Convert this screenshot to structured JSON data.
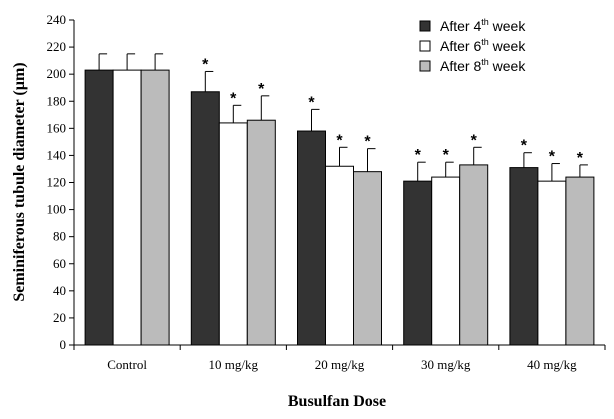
{
  "chart_data": {
    "type": "bar",
    "title": "",
    "xlabel": "Busulfan Dose",
    "ylabel": "Seminiferous tubule diameter (µm)",
    "ylim": [
      0,
      240
    ],
    "yticks": [
      0,
      20,
      40,
      60,
      80,
      100,
      120,
      140,
      160,
      180,
      200,
      220,
      240
    ],
    "grid": false,
    "legend_position": "top-right",
    "categories": [
      "Control",
      "10 mg/kg",
      "20 mg/kg",
      "30 mg/kg",
      "40 mg/kg"
    ],
    "series": [
      {
        "name_main": "After 4",
        "name_sup": "th",
        "name_tail": " week",
        "color": "#333333",
        "values": [
          203,
          187,
          158,
          121,
          131
        ],
        "errors": [
          12,
          15,
          16,
          14,
          11
        ],
        "significant": [
          false,
          true,
          true,
          true,
          true
        ]
      },
      {
        "name_main": "After 6",
        "name_sup": "th",
        "name_tail": " week",
        "color": "#ffffff",
        "values": [
          203,
          164,
          132,
          124,
          121
        ],
        "errors": [
          12,
          13,
          14,
          11,
          13
        ],
        "significant": [
          false,
          true,
          true,
          true,
          true
        ]
      },
      {
        "name_main": "After 8",
        "name_sup": "th",
        "name_tail": " week",
        "color": "#bbbbbb",
        "values": [
          203,
          166,
          128,
          133,
          124
        ],
        "errors": [
          12,
          18,
          17,
          13,
          9
        ],
        "significant": [
          false,
          true,
          true,
          true,
          true
        ]
      }
    ],
    "significance_marker": "*"
  }
}
